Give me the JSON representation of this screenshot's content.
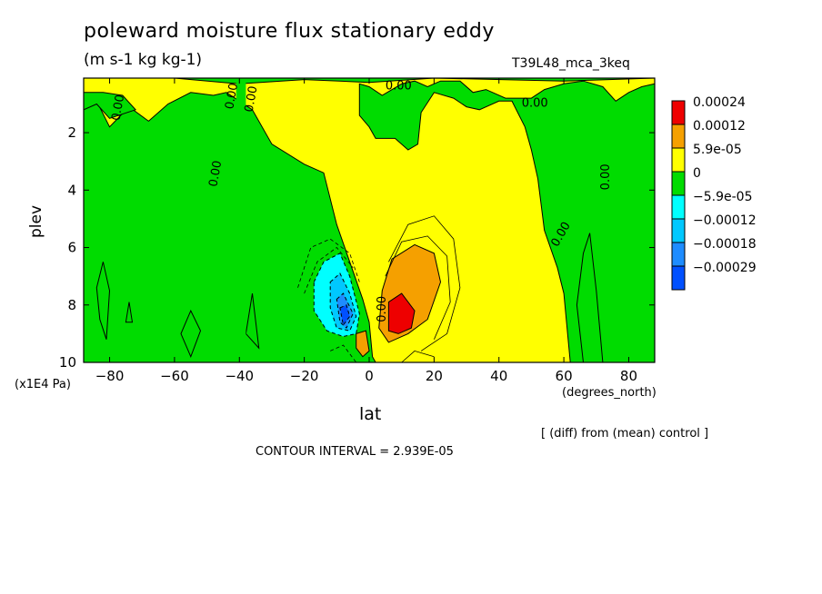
{
  "chart_data": {
    "type": "heatmap",
    "title": "poleward moisture flux stationary eddy",
    "units": "(m s-1 kg kg-1)",
    "run_label": "T39L48_mca_3keq",
    "xlabel": "lat",
    "x_unit": "(degrees_north)",
    "ylabel": "plev",
    "y_unit": "(x1E4 Pa)",
    "x_ticks": [
      -80,
      -60,
      -40,
      -20,
      0,
      20,
      40,
      60,
      80
    ],
    "y_ticks": [
      2,
      4,
      6,
      8,
      10
    ],
    "xlim": [
      -88,
      88
    ],
    "ylim": [
      10,
      0.1
    ],
    "contour_interval_text": "CONTOUR INTERVAL = 2.939E-05",
    "diff_note": "[ (diff) from (mean) control ]",
    "contour_labels": [
      "0.00",
      "0.00",
      "0.00",
      "0.00",
      "0.00",
      "0.00",
      "0.00",
      "0.00",
      "0.00"
    ],
    "legend": [
      {
        "label": "0.00024",
        "color": "#ee0000"
      },
      {
        "label": "0.00012",
        "color": "#f5a000"
      },
      {
        "label": "5.9e-05",
        "color": "#ffff00"
      },
      {
        "label": "0",
        "color": "#00dc00"
      },
      {
        "label": "−5.9e-05",
        "color": "#00ffff"
      },
      {
        "label": "−0.00012",
        "color": "#00c8ff"
      },
      {
        "label": "−0.00018",
        "color": "#1e8cff"
      },
      {
        "label": "−0.00029",
        "color": "#0050ff"
      }
    ],
    "regions": [
      {
        "name": "negative-band-sh-polar",
        "level": "0"
      },
      {
        "name": "negative-band-sh-midlat",
        "level": "0"
      },
      {
        "name": "negative-band-equator",
        "level": "0"
      },
      {
        "name": "negative-band-nh-midlat",
        "level": "0"
      },
      {
        "name": "negative-band-nh-polar",
        "level": "0"
      },
      {
        "name": "max-positive-core",
        "level": "0.00024",
        "lat": 10,
        "plev": 8.3
      },
      {
        "name": "max-negative-core",
        "level": "-0.00029",
        "lat": -8,
        "plev": 8.4
      }
    ],
    "grid": false,
    "legend_position": "right"
  }
}
